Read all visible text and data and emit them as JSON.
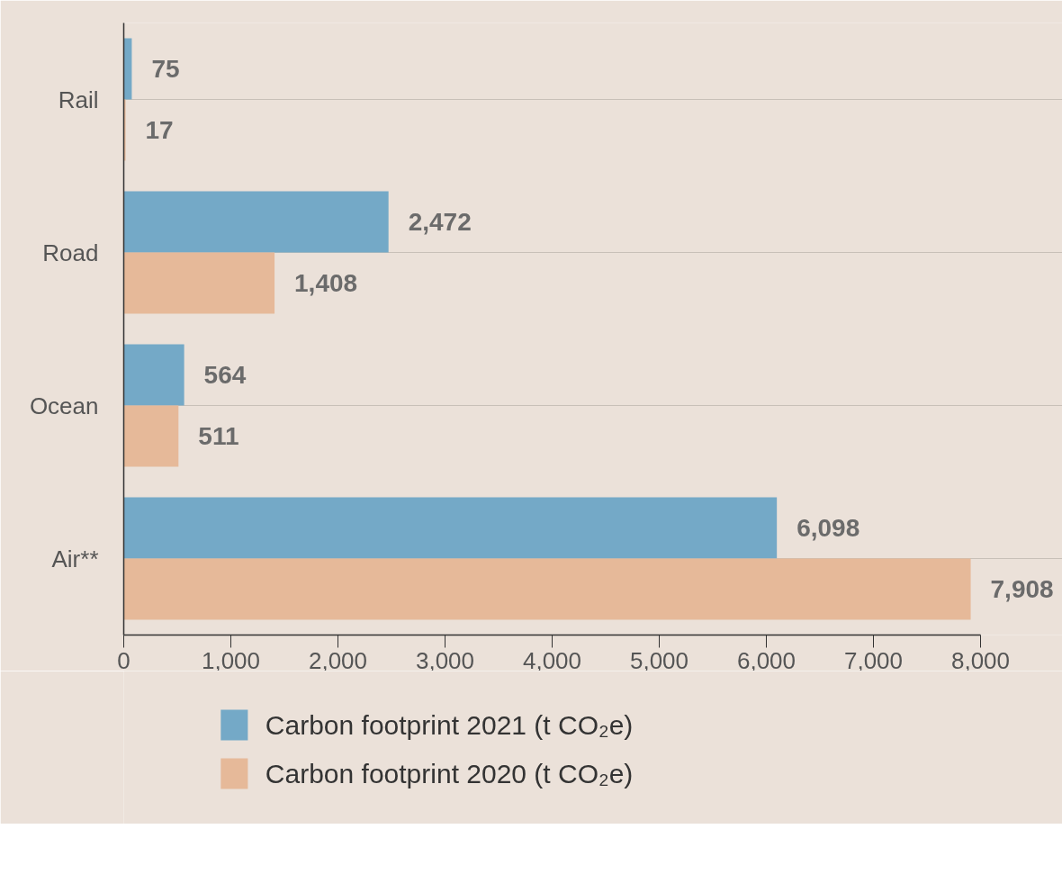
{
  "chart_data": {
    "type": "bar",
    "orientation": "horizontal",
    "categories": [
      "Rail",
      "Road",
      "Ocean",
      "Air**"
    ],
    "series": [
      {
        "name": "Carbon footprint 2021 (t CO₂e)",
        "color": "#74a9c7",
        "values": [
          75,
          2472,
          564,
          6098
        ]
      },
      {
        "name": "Carbon footprint 2020 (t CO₂e)",
        "color": "#e6b999",
        "values": [
          17,
          1408,
          511,
          7908
        ]
      }
    ],
    "xlim": [
      0,
      8000
    ],
    "xticks": [
      0,
      {
        "value": 1000,
        "label": "1,000"
      },
      {
        "value": 2000,
        "label": "2,000"
      },
      {
        "value": 3000,
        "label": "3,000"
      },
      {
        "value": 4000,
        "label": "4,000"
      },
      {
        "value": 5000,
        "label": "5,000"
      },
      {
        "value": 6000,
        "label": "6,000"
      },
      {
        "value": 7000,
        "label": "7,000"
      },
      {
        "value": 8000,
        "label": "8,000"
      }
    ],
    "value_labels": [
      [
        "75",
        "2,472",
        "564",
        "6,098"
      ],
      [
        "17",
        "1,408",
        "511",
        "7,908"
      ]
    ],
    "grid": "y",
    "legend": "bottom"
  }
}
